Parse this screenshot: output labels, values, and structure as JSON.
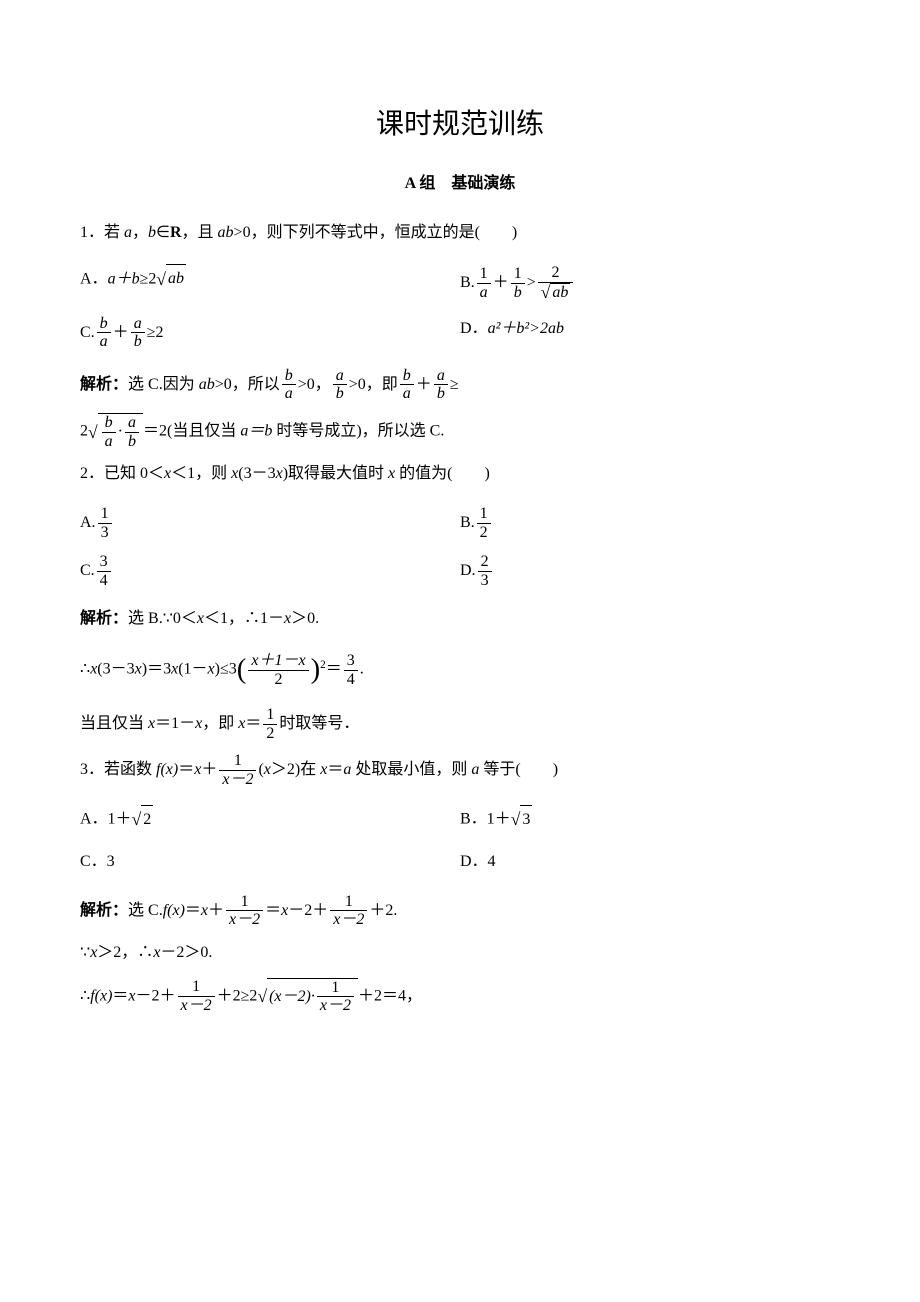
{
  "title": "课时规范训练",
  "section": "A 组　基础演练",
  "q1": {
    "stem_pre": "1．若 ",
    "stem_mid1": "a",
    "stem_mid2": "，",
    "stem_mid3": "b",
    "stem_mid4": "∈",
    "stem_mid5": "R",
    "stem_mid6": "，且 ",
    "stem_mid7": "ab",
    "stem_mid8": ">0，则下列不等式中，恒成立的是(　　)",
    "optA_pre": "A．",
    "optA_ab": "a＋b",
    "optA_geq": "≥2",
    "optA_rad": "ab",
    "optB_pre": "B.",
    "optB_n1": "1",
    "optB_d1": "a",
    "optB_plus": "＋",
    "optB_n2": "1",
    "optB_d2": "b",
    "optB_gt": ">",
    "optB_n3": "2",
    "optB_rad": "ab",
    "optC_pre": "C.",
    "optC_n1": "b",
    "optC_d1": "a",
    "optC_plus": "＋",
    "optC_n2": "a",
    "optC_d2": "b",
    "optC_geq": "≥2",
    "optD_pre": "D．",
    "optD_expr": "a²＋b²>2ab",
    "sol_label": "解析：",
    "sol_t1": "选 C.因为 ",
    "sol_ab": "ab",
    "sol_t2": ">0，所以",
    "sol_n1": "b",
    "sol_d1": "a",
    "sol_t3": ">0，",
    "sol_n2": "a",
    "sol_d2": "b",
    "sol_t4": ">0，即",
    "sol_n3": "b",
    "sol_d3": "a",
    "sol_t5": "＋",
    "sol_n4": "a",
    "sol_d4": "b",
    "sol_t6": "≥",
    "sol2_t1": "2",
    "sol2_rn1": "b",
    "sol2_rd1": "a",
    "sol2_rdot": "·",
    "sol2_rn2": "a",
    "sol2_rd2": "b",
    "sol2_t2": "＝2(当且仅当 ",
    "sol2_ab": "a＝b",
    "sol2_t3": " 时等号成立)，所以选 C."
  },
  "q2": {
    "stem_t1": "2．已知 0＜",
    "stem_x1": "x",
    "stem_t2": "＜1，则 ",
    "stem_x2": "x",
    "stem_t3": "(3－3",
    "stem_x3": "x",
    "stem_t4": ")取得最大值时 ",
    "stem_x4": "x",
    "stem_t5": " 的值为(　　)",
    "optA_pre": "A.",
    "optA_n": "1",
    "optA_d": "3",
    "optB_pre": "B.",
    "optB_n": "1",
    "optB_d": "2",
    "optC_pre": "C.",
    "optC_n": "3",
    "optC_d": "4",
    "optD_pre": "D.",
    "optD_n": "2",
    "optD_d": "3",
    "sol_label": "解析：",
    "sol_t1": "选 B.∵0＜",
    "sol_x1": "x",
    "sol_t2": "＜1，∴1－",
    "sol_x2": "x",
    "sol_t3": "＞0.",
    "sol2_t1": "∴",
    "sol2_x1": "x",
    "sol2_t2": "(3－3",
    "sol2_x2": "x",
    "sol2_t3": ")＝3",
    "sol2_x3": "x",
    "sol2_t4": "(1－",
    "sol2_x4": "x",
    "sol2_t5": ")≤3",
    "sol2_fn": "x＋1－x",
    "sol2_fd": "2",
    "sol2_sq": "2",
    "sol2_t6": "＝",
    "sol2_rn": "3",
    "sol2_rd": "4",
    "sol2_t7": ".",
    "sol3_t1": "当且仅当 ",
    "sol3_x1": "x",
    "sol3_t2": "＝1－",
    "sol3_x2": "x",
    "sol3_t3": "，即 ",
    "sol3_x3": "x",
    "sol3_t4": "＝",
    "sol3_n": "1",
    "sol3_d": "2",
    "sol3_t5": "时取等号．"
  },
  "q3": {
    "stem_t1": "3．若函数 ",
    "stem_fx": "f(x)",
    "stem_t2": "＝",
    "stem_x1": "x",
    "stem_t3": "＋",
    "stem_fn": "1",
    "stem_fd": "x－2",
    "stem_t4": "(",
    "stem_x2": "x",
    "stem_t5": "＞2)在 ",
    "stem_x3": "x",
    "stem_t6": "＝",
    "stem_a1": "a",
    "stem_t7": " 处取最小值，则 ",
    "stem_a2": "a",
    "stem_t8": " 等于(　　)",
    "optA_pre": "A．1＋",
    "optA_rad": "2",
    "optB_pre": "B．1＋",
    "optB_rad": "3",
    "optC": "C．3",
    "optD": "D．4",
    "sol_label": "解析：",
    "sol_t1": "选 C.",
    "sol_fx": "f(x)",
    "sol_t2": "＝",
    "sol_x1": "x",
    "sol_t3": "＋",
    "sol_fn1": "1",
    "sol_fd1": "x－2",
    "sol_t4": "＝",
    "sol_x2": "x",
    "sol_t5": "－2＋",
    "sol_fn2": "1",
    "sol_fd2": "x－2",
    "sol_t6": "＋2.",
    "sol2_t1": "∵",
    "sol2_x1": "x",
    "sol2_t2": "＞2，∴",
    "sol2_x2": "x",
    "sol2_t3": "－2＞0.",
    "sol3_t1": "∴",
    "sol3_fx": "f(x)",
    "sol3_t2": "＝",
    "sol3_x1": "x",
    "sol3_t3": "－2＋",
    "sol3_fn1": "1",
    "sol3_fd1": "x－2",
    "sol3_t4": "＋2≥2",
    "sol3_rad_t1": "(x－2)·",
    "sol3_rad_fn": "1",
    "sol3_rad_fd": "x－2",
    "sol3_t5": "＋2＝4，"
  },
  "colors": {
    "text": "#000000",
    "bg": "#ffffff"
  },
  "fonts": {
    "body_pt": 12,
    "title_pt": 21,
    "section_pt": 12
  }
}
